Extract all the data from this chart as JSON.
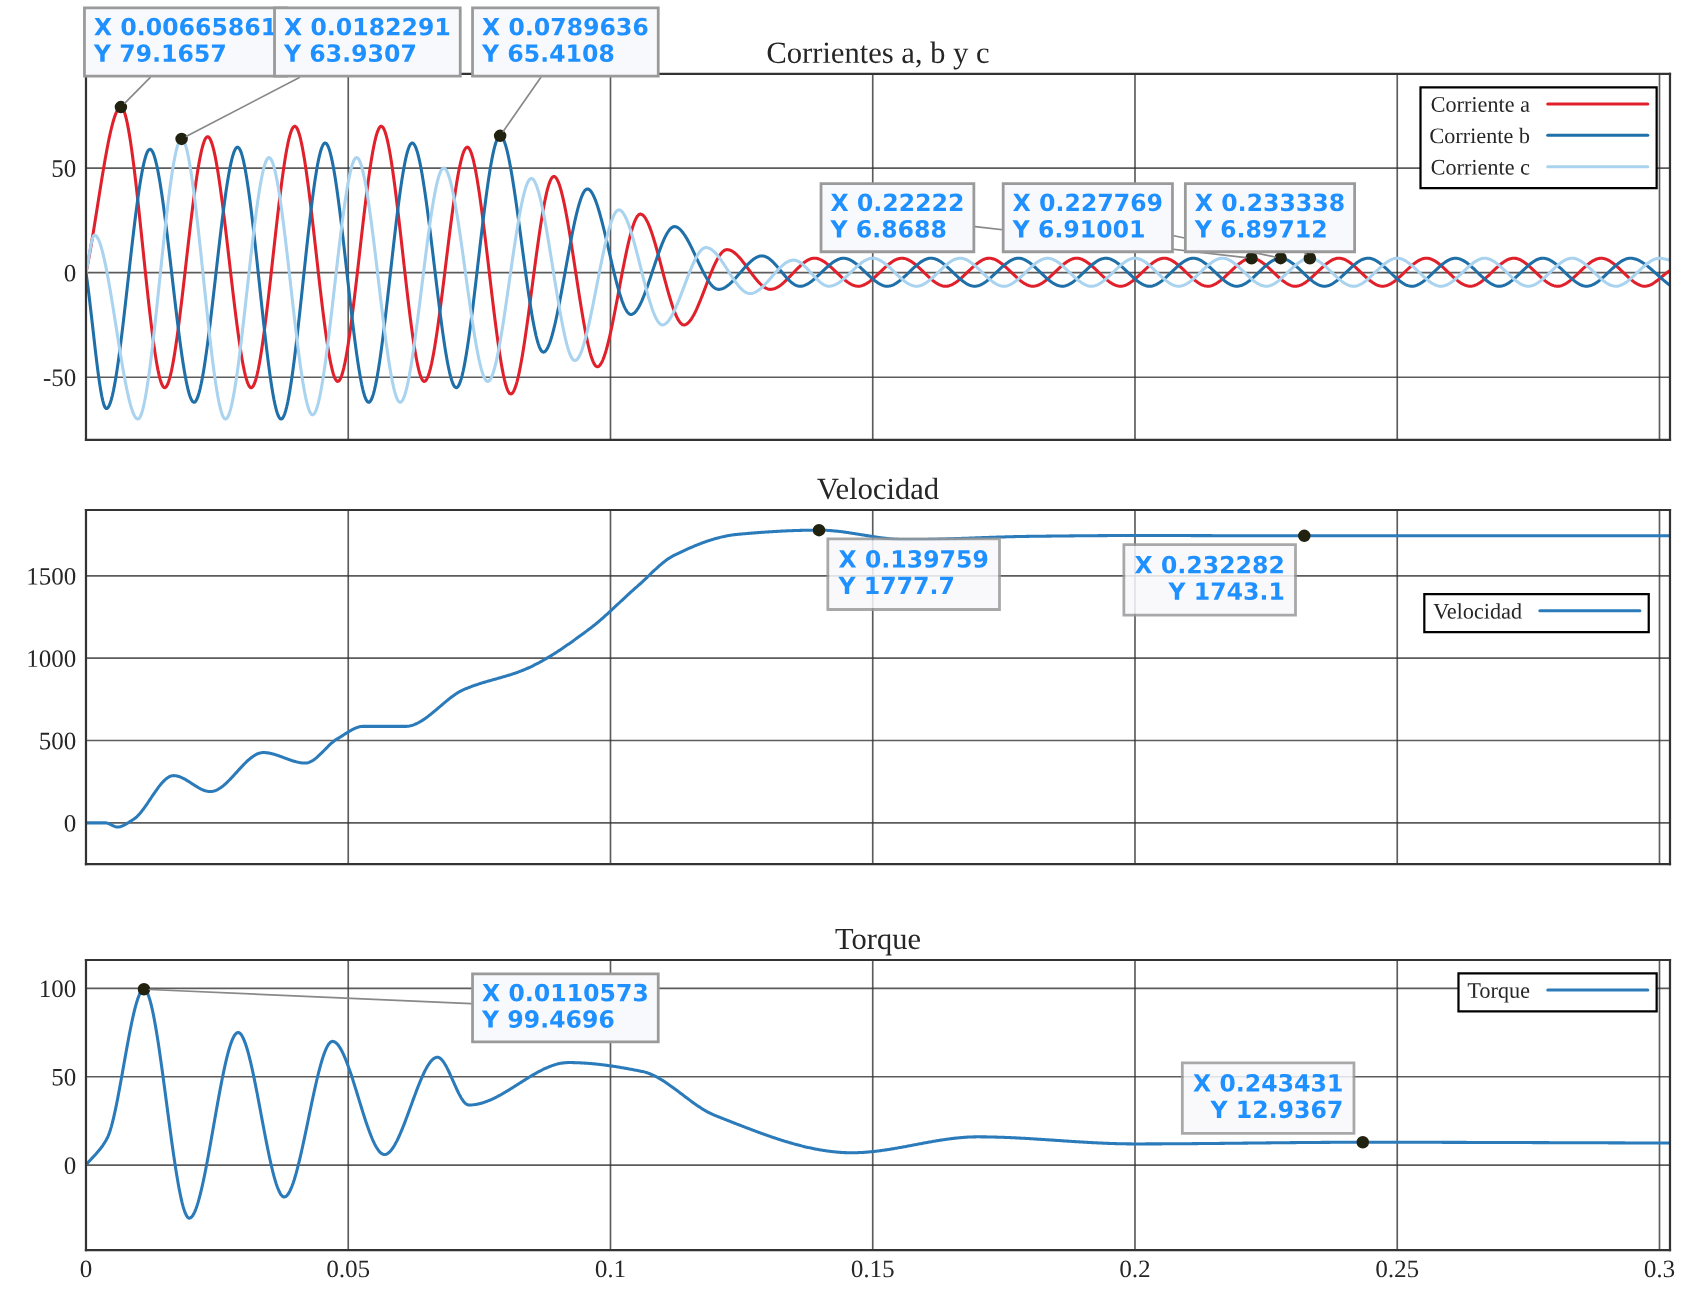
{
  "chart_data": [
    {
      "type": "line",
      "title": "Corrientes a, b y c",
      "xlim": [
        0,
        0.302
      ],
      "ylim": [
        -80,
        95
      ],
      "xticks": [
        0,
        0.05,
        0.1,
        0.15,
        0.2,
        0.25,
        0.3
      ],
      "yticks": [
        -50,
        0,
        50
      ],
      "grid": true,
      "legend": "top right",
      "tick_labels": "y",
      "series": [
        {
          "name": "Corriente a",
          "color": "#e0202a",
          "x": [
            0,
            0.00665861,
            0.015,
            0.0232,
            0.0315,
            0.0398,
            0.048,
            0.0563,
            0.0645,
            0.0727,
            0.081,
            0.0892,
            0.0975,
            0.1057,
            0.114,
            0.1222,
            0.1305,
            0.13889,
            0.14722,
            0.15556,
            0.16389,
            0.17222,
            0.18056,
            0.18889,
            0.19722,
            0.20556,
            0.21389,
            0.22222,
            0.23056,
            0.23889,
            0.24722,
            0.25556,
            0.26389,
            0.27222,
            0.28056,
            0.28889,
            0.29722,
            0.302
          ],
          "values": [
            0,
            79.1657,
            -55,
            65,
            -55,
            70,
            -52,
            70,
            -52,
            60,
            -58,
            46,
            -45,
            28,
            -25,
            11,
            -8,
            6.9,
            -6.5,
            6.9,
            -6.5,
            6.9,
            -6.5,
            6.9,
            -6.5,
            6.9,
            -6.5,
            6.8688,
            -6.5,
            6.9,
            -6.5,
            6.9,
            -6.5,
            6.9,
            -6.5,
            6.9,
            -6.5,
            1
          ]
        },
        {
          "name": "Corriente b",
          "color": "#1f6fa8",
          "x": [
            0,
            0.0039,
            0.0122,
            0.0206,
            0.0289,
            0.0372,
            0.0456,
            0.0539,
            0.0622,
            0.0706,
            0.0789636,
            0.0872,
            0.0956,
            0.1039,
            0.1122,
            0.1206,
            0.1289,
            0.1361,
            0.14444,
            0.15278,
            0.16111,
            0.16944,
            0.17778,
            0.18611,
            0.19444,
            0.20278,
            0.21111,
            0.21944,
            0.227769,
            0.23611,
            0.24444,
            0.25278,
            0.26111,
            0.26944,
            0.27778,
            0.28611,
            0.29444,
            0.302
          ],
          "values": [
            0,
            -65,
            59,
            -62,
            60,
            -70,
            62,
            -62,
            62,
            -55,
            65.4108,
            -38,
            40,
            -20,
            22,
            -8,
            8,
            -6.5,
            6.9,
            -6.5,
            6.9,
            -6.5,
            6.9,
            -6.5,
            6.9,
            -6.5,
            6.9,
            -6.5,
            6.91001,
            -6.5,
            6.9,
            -6.5,
            6.9,
            -6.5,
            6.9,
            -6.5,
            6.9,
            -6
          ]
        },
        {
          "name": "Corriente c",
          "color": "#a9d3ee",
          "x": [
            0,
            0.0016,
            0.0099,
            0.0182291,
            0.0266,
            0.0349,
            0.0432,
            0.0516,
            0.0599,
            0.0682,
            0.0766,
            0.0849,
            0.0932,
            0.1016,
            0.1099,
            0.1182,
            0.1266,
            0.1349,
            0.14167,
            0.15,
            0.15833,
            0.16667,
            0.175,
            0.18333,
            0.19167,
            0.2,
            0.20833,
            0.21667,
            0.225,
            0.233338,
            0.24167,
            0.25,
            0.25833,
            0.26667,
            0.275,
            0.28333,
            0.29167,
            0.3,
            0.302
          ],
          "values": [
            0,
            18,
            -70,
            63.9307,
            -70,
            55,
            -68,
            55,
            -62,
            50,
            -52,
            45,
            -42,
            30,
            -25,
            12,
            -10,
            6,
            -6.5,
            6.9,
            -6.5,
            6.9,
            -6.5,
            6.9,
            -6.5,
            6.9,
            -6.5,
            6.9,
            -6.5,
            6.89712,
            -6.5,
            6.9,
            -6.5,
            6.9,
            -6.5,
            6.9,
            -6.5,
            6.9,
            6
          ]
        }
      ],
      "annotations": [
        {
          "text": "X 0.00665861\nY 79.1657",
          "x": 0.00665861,
          "y": 79.1657
        },
        {
          "text": "X 0.0182291\nY 63.9307",
          "x": 0.0182291,
          "y": 63.9307
        },
        {
          "text": "X 0.0789636\nY 65.4108",
          "x": 0.0789636,
          "y": 65.4108
        },
        {
          "text": "X 0.22222\nY 6.8688",
          "x": 0.22222,
          "y": 6.8688
        },
        {
          "text": "X 0.227769\nY 6.91001",
          "x": 0.227769,
          "y": 6.91001
        },
        {
          "text": "X 0.233338\nY 6.89712",
          "x": 0.233338,
          "y": 6.89712
        }
      ]
    },
    {
      "type": "line",
      "title": "Velocidad",
      "xlim": [
        0,
        0.302
      ],
      "ylim": [
        -250,
        1900
      ],
      "xticks": [
        0,
        0.05,
        0.1,
        0.15,
        0.2,
        0.25,
        0.3
      ],
      "yticks": [
        0,
        500,
        1000,
        1500
      ],
      "grid": true,
      "legend": "top right",
      "tick_labels": "y",
      "series": [
        {
          "name": "Velocidad",
          "color": "#2b7bba",
          "x": [
            0,
            0.0037,
            0.006,
            0.009,
            0.0167,
            0.0237,
            0.0338,
            0.0418,
            0.0479,
            0.0529,
            0.0609,
            0.072,
            0.084,
            0.096,
            0.105,
            0.1121,
            0.1242,
            0.139759,
            0.1563,
            0.18,
            0.2,
            0.232282,
            0.26,
            0.302
          ],
          "values": [
            0,
            0,
            -25,
            20,
            287,
            190,
            427,
            363,
            510,
            586,
            586,
            809,
            936,
            1178,
            1433,
            1624,
            1752,
            1777.7,
            1720,
            1740,
            1745,
            1743.1,
            1744,
            1743
          ]
        }
      ],
      "annotations": [
        {
          "text": "X 0.139759\nY 1777.7",
          "x": 0.139759,
          "y": 1777.7
        },
        {
          "text": "X 0.232282\nY 1743.1",
          "x": 0.232282,
          "y": 1743.1
        }
      ]
    },
    {
      "type": "line",
      "title": "Torque",
      "xlim": [
        0,
        0.302
      ],
      "ylim": [
        -48,
        116
      ],
      "xticks": [
        0,
        0.05,
        0.1,
        0.15,
        0.2,
        0.25,
        0.3
      ],
      "yticks": [
        0,
        50,
        100
      ],
      "grid": true,
      "legend": "top right",
      "series": [
        {
          "name": "Torque",
          "color": "#2b7bba",
          "x": [
            0,
            0.004,
            0.0110573,
            0.0197,
            0.029,
            0.0378,
            0.047,
            0.0569,
            0.067,
            0.073,
            0.092,
            0.106,
            0.12,
            0.146,
            0.17,
            0.2,
            0.243431,
            0.302
          ],
          "values": [
            0,
            15,
            99.4696,
            -30,
            75,
            -18,
            70,
            6,
            61,
            34,
            58,
            53,
            28,
            7,
            16,
            12,
            12.9367,
            12.5
          ]
        }
      ],
      "annotations": [
        {
          "text": "X 0.0110573\nY 99.4696",
          "x": 0.0110573,
          "y": 99.4696
        },
        {
          "text": "X 0.243431\nY 12.9367",
          "x": 0.243431,
          "y": 12.9367
        }
      ]
    }
  ]
}
